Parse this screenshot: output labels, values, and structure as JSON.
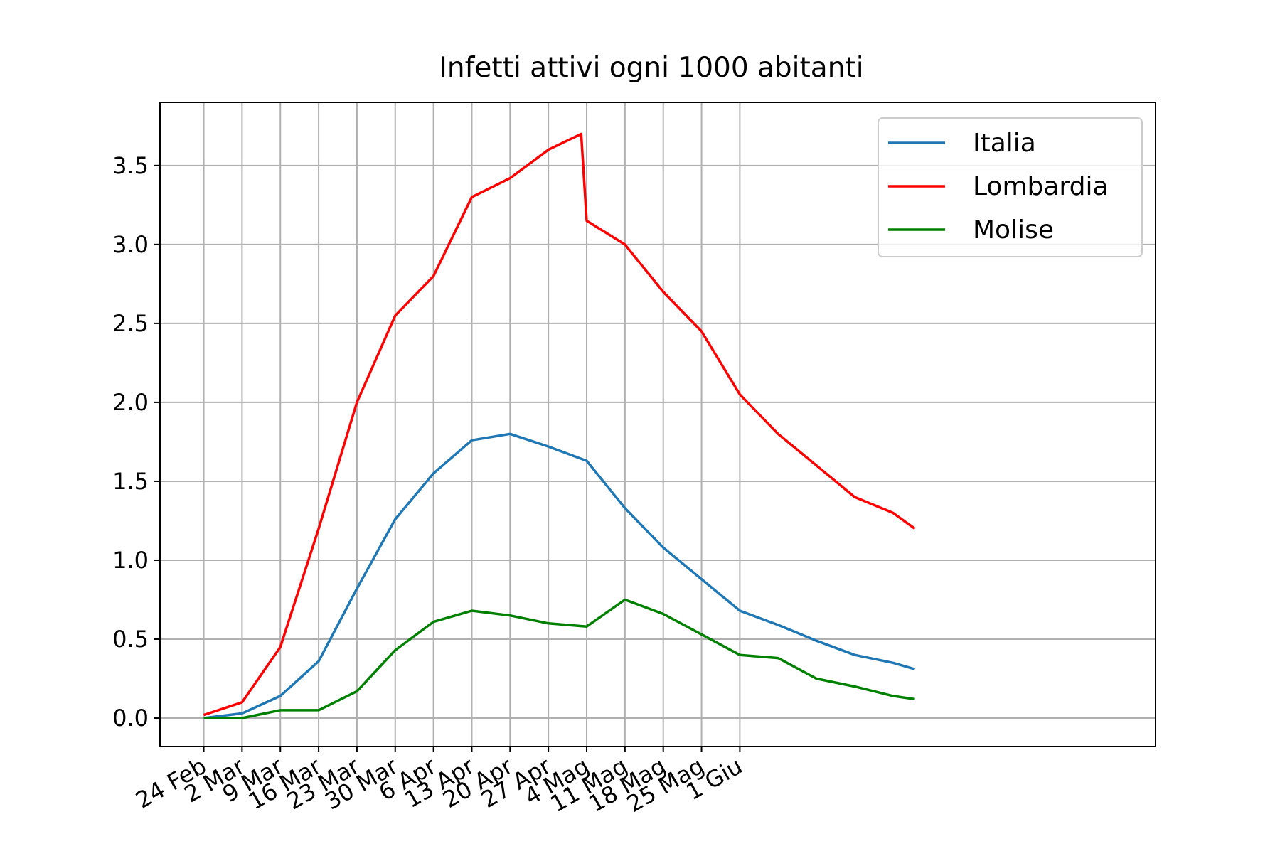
{
  "chart_data": {
    "type": "line",
    "title": "Infetti attivi ogni 1000 abitanti",
    "xlabel": "",
    "ylabel": "",
    "ylim": [
      -0.18,
      3.9
    ],
    "xlim": [
      -8,
      174
    ],
    "grid": true,
    "legend_position": "top-right",
    "x_ticks": [
      {
        "label": "24 Feb",
        "day": 0
      },
      {
        "label": "2 Mar",
        "day": 7
      },
      {
        "label": "9 Mar",
        "day": 14
      },
      {
        "label": "16 Mar",
        "day": 21
      },
      {
        "label": "23 Mar",
        "day": 28
      },
      {
        "label": "30 Mar",
        "day": 35
      },
      {
        "label": "6 Apr",
        "day": 42
      },
      {
        "label": "13 Apr",
        "day": 49
      },
      {
        "label": "20 Apr",
        "day": 56
      },
      {
        "label": "27 Apr",
        "day": 63
      },
      {
        "label": "4 Mag",
        "day": 70
      },
      {
        "label": "11 Mag",
        "day": 77
      },
      {
        "label": "18 Mag",
        "day": 84
      },
      {
        "label": "25 Mag",
        "day": 91
      },
      {
        "label": "1 Giu",
        "day": 98
      }
    ],
    "y_ticks": [
      {
        "label": "0.0",
        "value": 0.0
      },
      {
        "label": "0.5",
        "value": 0.5
      },
      {
        "label": "1.0",
        "value": 1.0
      },
      {
        "label": "1.5",
        "value": 1.5
      },
      {
        "label": "2.0",
        "value": 2.0
      },
      {
        "label": "2.5",
        "value": 2.5
      },
      {
        "label": "3.0",
        "value": 3.0
      },
      {
        "label": "3.5",
        "value": 3.5
      }
    ],
    "series": [
      {
        "name": "Italia",
        "color": "#1f77b4",
        "points": [
          [
            0,
            0.0
          ],
          [
            7,
            0.03
          ],
          [
            14,
            0.14
          ],
          [
            21,
            0.36
          ],
          [
            28,
            0.82
          ],
          [
            35,
            1.26
          ],
          [
            42,
            1.55
          ],
          [
            49,
            1.76
          ],
          [
            56,
            1.8
          ],
          [
            63,
            1.72
          ],
          [
            70,
            1.63
          ],
          [
            77,
            1.33
          ],
          [
            84,
            1.08
          ],
          [
            91,
            0.88
          ],
          [
            98,
            0.68
          ],
          [
            105,
            0.59
          ],
          [
            112,
            0.49
          ],
          [
            119,
            0.4
          ],
          [
            126,
            0.35
          ],
          [
            130,
            0.31
          ]
        ]
      },
      {
        "name": "Lombardia",
        "color": "#ff0000",
        "points": [
          [
            0,
            0.02
          ],
          [
            7,
            0.1
          ],
          [
            14,
            0.45
          ],
          [
            21,
            1.2
          ],
          [
            28,
            2.0
          ],
          [
            35,
            2.55
          ],
          [
            42,
            2.8
          ],
          [
            49,
            3.3
          ],
          [
            56,
            3.42
          ],
          [
            63,
            3.6
          ],
          [
            69,
            3.7
          ],
          [
            70,
            3.15
          ],
          [
            77,
            3.0
          ],
          [
            84,
            2.7
          ],
          [
            91,
            2.45
          ],
          [
            98,
            2.05
          ],
          [
            105,
            1.8
          ],
          [
            112,
            1.6
          ],
          [
            119,
            1.4
          ],
          [
            126,
            1.3
          ],
          [
            130,
            1.2
          ]
        ]
      },
      {
        "name": "Molise",
        "color": "#008000",
        "points": [
          [
            0,
            0.0
          ],
          [
            7,
            0.0
          ],
          [
            14,
            0.05
          ],
          [
            21,
            0.05
          ],
          [
            28,
            0.17
          ],
          [
            35,
            0.43
          ],
          [
            42,
            0.61
          ],
          [
            49,
            0.68
          ],
          [
            56,
            0.65
          ],
          [
            63,
            0.6
          ],
          [
            70,
            0.58
          ],
          [
            77,
            0.75
          ],
          [
            84,
            0.66
          ],
          [
            91,
            0.53
          ],
          [
            98,
            0.4
          ],
          [
            105,
            0.38
          ],
          [
            112,
            0.25
          ],
          [
            119,
            0.2
          ],
          [
            126,
            0.14
          ],
          [
            130,
            0.12
          ]
        ]
      }
    ]
  }
}
